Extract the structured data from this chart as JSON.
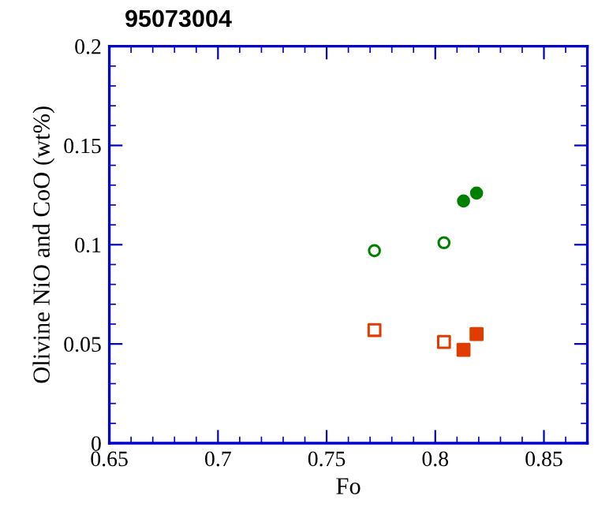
{
  "chart_data": {
    "type": "scatter",
    "title": "95073004",
    "xlabel": "Fo",
    "ylabel": "Olivine NiO and CoO (wt%)",
    "xlim": [
      0.65,
      0.87
    ],
    "xticks": [
      0.65,
      0.7,
      0.75,
      0.8,
      0.85
    ],
    "ylim": [
      0,
      0.2
    ],
    "yticks": [
      0,
      0.05,
      0.1,
      0.15,
      0.2
    ],
    "grid": false,
    "legend": false,
    "series": [
      {
        "color": "#008000",
        "marker": "circle",
        "x": [
          0.772,
          0.804
        ],
        "values": [
          0.097,
          0.101
        ]
      },
      {
        "color": "#008000",
        "marker": "circle",
        "x": [
          0.813,
          0.819
        ],
        "values": [
          0.122,
          0.126
        ]
      },
      {
        "color": "#e03c00",
        "marker": "square",
        "x": [
          0.772,
          0.804
        ],
        "values": [
          0.057,
          0.051
        ]
      },
      {
        "color": "#e03c00",
        "marker": "square",
        "x": [
          0.813,
          0.819
        ],
        "values": [
          0.047,
          0.055
        ]
      }
    ]
  }
}
